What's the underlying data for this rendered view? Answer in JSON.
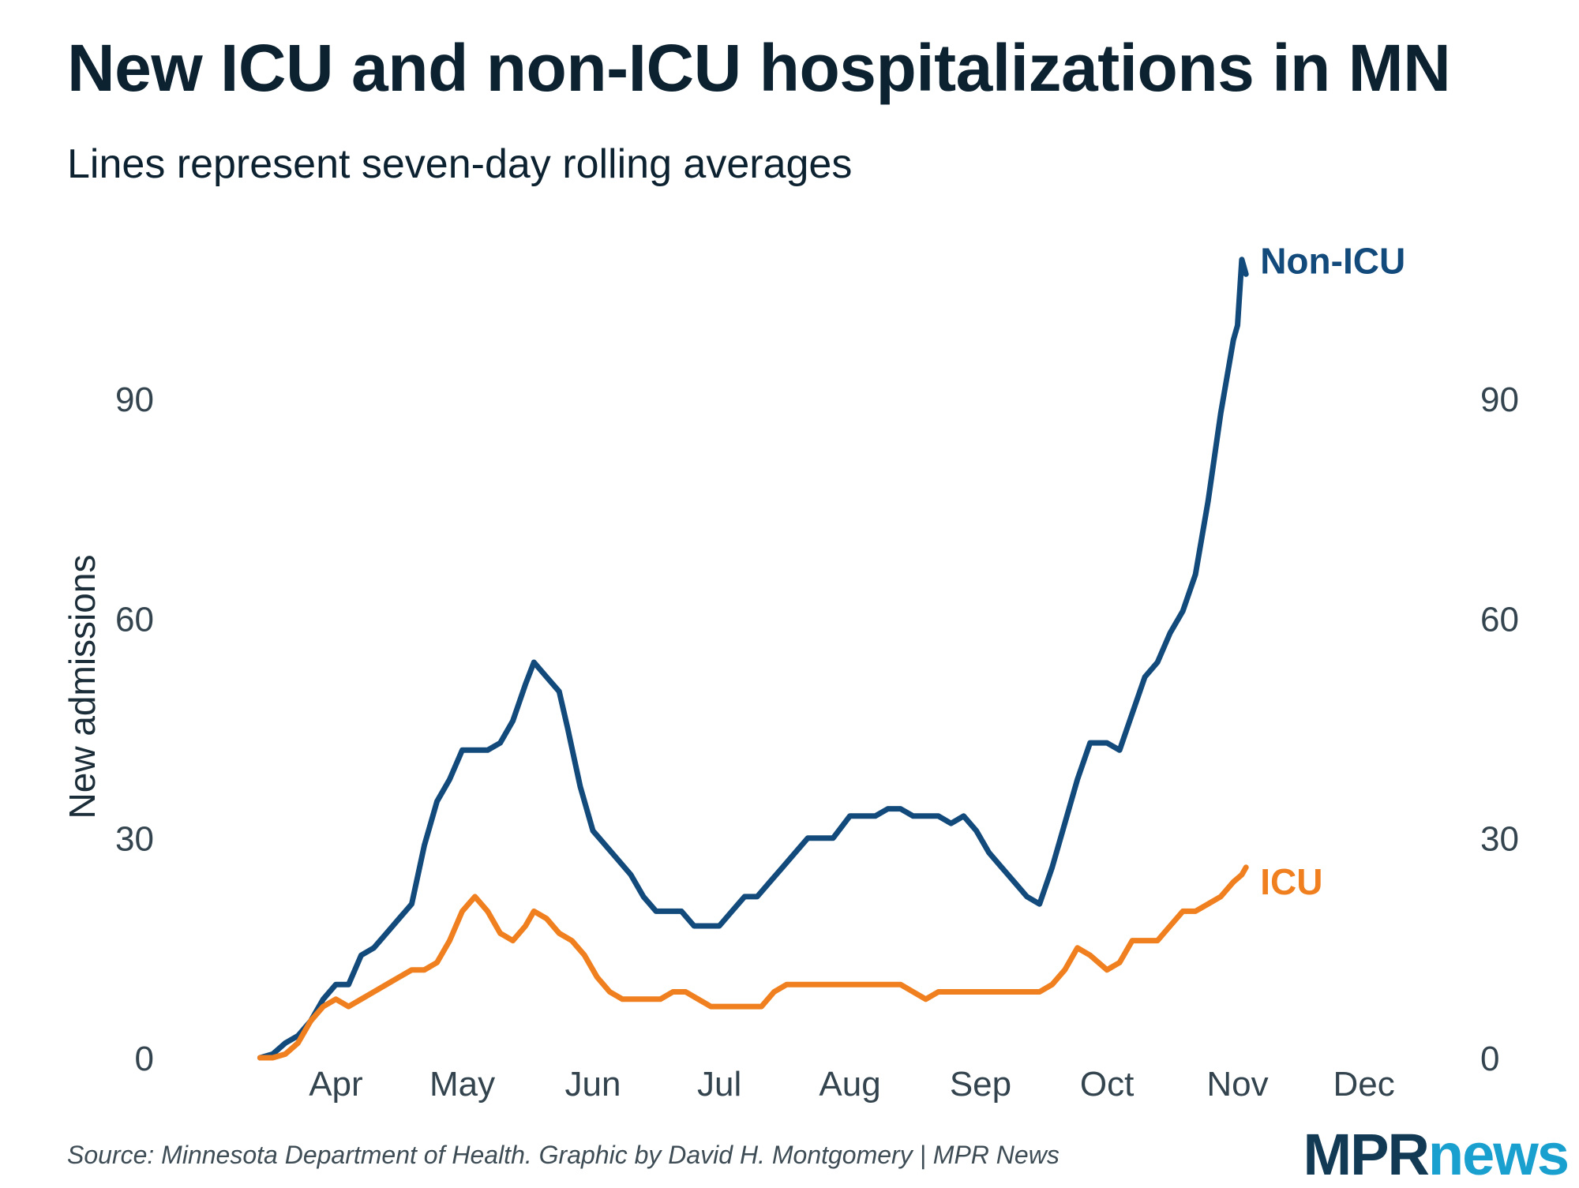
{
  "title": "New ICU and non-ICU hospitalizations in MN",
  "subtitle": "Lines represent seven-day rolling averages",
  "source": "Source: Minnesota Department of Health. Graphic by David H. Montgomery | MPR News",
  "logo": {
    "part1": "MPR",
    "part2": "news"
  },
  "colors": {
    "non_icu": "#134a7c",
    "icu": "#f0801f",
    "text": "#0d2231"
  },
  "chart_data": {
    "type": "line",
    "title": "New ICU and non-ICU hospitalizations in MN",
    "subtitle": "Lines represent seven-day rolling averages",
    "ylabel": "New admissions",
    "xlabel": "",
    "ylim": [
      0,
      120
    ],
    "yticks": [
      0,
      30,
      60,
      90
    ],
    "xlim": [
      "2020-03-01",
      "2020-12-08"
    ],
    "xticks": [
      {
        "label": "Apr",
        "date": "2020-04-01"
      },
      {
        "label": "May",
        "date": "2020-05-01"
      },
      {
        "label": "Jun",
        "date": "2020-06-01"
      },
      {
        "label": "Jul",
        "date": "2020-07-01"
      },
      {
        "label": "Aug",
        "date": "2020-08-01"
      },
      {
        "label": "Sep",
        "date": "2020-09-01"
      },
      {
        "label": "Oct",
        "date": "2020-10-01"
      },
      {
        "label": "Nov",
        "date": "2020-11-01"
      },
      {
        "label": "Dec",
        "date": "2020-12-01"
      }
    ],
    "grid": false,
    "legend": "direct labels at line ends",
    "series": [
      {
        "name": "Non-ICU",
        "color": "#134a7c",
        "points": [
          [
            "2020-03-14",
            0
          ],
          [
            "2020-03-17",
            0.5
          ],
          [
            "2020-03-20",
            2
          ],
          [
            "2020-03-23",
            3
          ],
          [
            "2020-03-26",
            5
          ],
          [
            "2020-03-29",
            8
          ],
          [
            "2020-04-01",
            10
          ],
          [
            "2020-04-04",
            10
          ],
          [
            "2020-04-07",
            14
          ],
          [
            "2020-04-10",
            15
          ],
          [
            "2020-04-13",
            17
          ],
          [
            "2020-04-16",
            19
          ],
          [
            "2020-04-19",
            21
          ],
          [
            "2020-04-22",
            29
          ],
          [
            "2020-04-25",
            35
          ],
          [
            "2020-04-28",
            38
          ],
          [
            "2020-05-01",
            42
          ],
          [
            "2020-05-04",
            42
          ],
          [
            "2020-05-07",
            42
          ],
          [
            "2020-05-10",
            43
          ],
          [
            "2020-05-13",
            46
          ],
          [
            "2020-05-16",
            51
          ],
          [
            "2020-05-18",
            54
          ],
          [
            "2020-05-21",
            52
          ],
          [
            "2020-05-24",
            50
          ],
          [
            "2020-05-26",
            45
          ],
          [
            "2020-05-29",
            37
          ],
          [
            "2020-06-01",
            31
          ],
          [
            "2020-06-04",
            29
          ],
          [
            "2020-06-07",
            27
          ],
          [
            "2020-06-10",
            25
          ],
          [
            "2020-06-13",
            22
          ],
          [
            "2020-06-16",
            20
          ],
          [
            "2020-06-19",
            20
          ],
          [
            "2020-06-22",
            20
          ],
          [
            "2020-06-25",
            18
          ],
          [
            "2020-06-28",
            18
          ],
          [
            "2020-07-01",
            18
          ],
          [
            "2020-07-04",
            20
          ],
          [
            "2020-07-07",
            22
          ],
          [
            "2020-07-10",
            22
          ],
          [
            "2020-07-13",
            24
          ],
          [
            "2020-07-16",
            26
          ],
          [
            "2020-07-19",
            28
          ],
          [
            "2020-07-22",
            30
          ],
          [
            "2020-07-25",
            30
          ],
          [
            "2020-07-28",
            30
          ],
          [
            "2020-08-01",
            33
          ],
          [
            "2020-08-04",
            33
          ],
          [
            "2020-08-07",
            33
          ],
          [
            "2020-08-10",
            34
          ],
          [
            "2020-08-13",
            34
          ],
          [
            "2020-08-16",
            33
          ],
          [
            "2020-08-19",
            33
          ],
          [
            "2020-08-22",
            33
          ],
          [
            "2020-08-25",
            32
          ],
          [
            "2020-08-28",
            33
          ],
          [
            "2020-08-31",
            31
          ],
          [
            "2020-09-03",
            28
          ],
          [
            "2020-09-06",
            26
          ],
          [
            "2020-09-09",
            24
          ],
          [
            "2020-09-12",
            22
          ],
          [
            "2020-09-15",
            21
          ],
          [
            "2020-09-18",
            26
          ],
          [
            "2020-09-21",
            32
          ],
          [
            "2020-09-24",
            38
          ],
          [
            "2020-09-27",
            43
          ],
          [
            "2020-10-01",
            43
          ],
          [
            "2020-10-04",
            42
          ],
          [
            "2020-10-07",
            47
          ],
          [
            "2020-10-10",
            52
          ],
          [
            "2020-10-13",
            54
          ],
          [
            "2020-10-16",
            58
          ],
          [
            "2020-10-19",
            61
          ],
          [
            "2020-10-22",
            66
          ],
          [
            "2020-10-25",
            76
          ],
          [
            "2020-10-28",
            88
          ],
          [
            "2020-10-31",
            98
          ],
          [
            "2020-11-01",
            100
          ],
          [
            "2020-11-02",
            109
          ],
          [
            "2020-11-03",
            107
          ]
        ]
      },
      {
        "name": "ICU",
        "color": "#f0801f",
        "points": [
          [
            "2020-03-14",
            0
          ],
          [
            "2020-03-17",
            0
          ],
          [
            "2020-03-20",
            0.5
          ],
          [
            "2020-03-23",
            2
          ],
          [
            "2020-03-26",
            5
          ],
          [
            "2020-03-29",
            7
          ],
          [
            "2020-04-01",
            8
          ],
          [
            "2020-04-04",
            7
          ],
          [
            "2020-04-07",
            8
          ],
          [
            "2020-04-10",
            9
          ],
          [
            "2020-04-13",
            10
          ],
          [
            "2020-04-16",
            11
          ],
          [
            "2020-04-19",
            12
          ],
          [
            "2020-04-22",
            12
          ],
          [
            "2020-04-25",
            13
          ],
          [
            "2020-04-28",
            16
          ],
          [
            "2020-05-01",
            20
          ],
          [
            "2020-05-04",
            22
          ],
          [
            "2020-05-07",
            20
          ],
          [
            "2020-05-10",
            17
          ],
          [
            "2020-05-13",
            16
          ],
          [
            "2020-05-16",
            18
          ],
          [
            "2020-05-18",
            20
          ],
          [
            "2020-05-21",
            19
          ],
          [
            "2020-05-24",
            17
          ],
          [
            "2020-05-27",
            16
          ],
          [
            "2020-05-30",
            14
          ],
          [
            "2020-06-02",
            11
          ],
          [
            "2020-06-05",
            9
          ],
          [
            "2020-06-08",
            8
          ],
          [
            "2020-06-11",
            8
          ],
          [
            "2020-06-14",
            8
          ],
          [
            "2020-06-17",
            8
          ],
          [
            "2020-06-20",
            9
          ],
          [
            "2020-06-23",
            9
          ],
          [
            "2020-06-26",
            8
          ],
          [
            "2020-06-29",
            7
          ],
          [
            "2020-07-02",
            7
          ],
          [
            "2020-07-05",
            7
          ],
          [
            "2020-07-08",
            7
          ],
          [
            "2020-07-11",
            7
          ],
          [
            "2020-07-14",
            9
          ],
          [
            "2020-07-17",
            10
          ],
          [
            "2020-07-20",
            10
          ],
          [
            "2020-07-23",
            10
          ],
          [
            "2020-07-26",
            10
          ],
          [
            "2020-07-29",
            10
          ],
          [
            "2020-08-01",
            10
          ],
          [
            "2020-08-04",
            10
          ],
          [
            "2020-08-07",
            10
          ],
          [
            "2020-08-10",
            10
          ],
          [
            "2020-08-13",
            10
          ],
          [
            "2020-08-16",
            9
          ],
          [
            "2020-08-19",
            8
          ],
          [
            "2020-08-22",
            9
          ],
          [
            "2020-08-25",
            9
          ],
          [
            "2020-08-28",
            9
          ],
          [
            "2020-08-31",
            9
          ],
          [
            "2020-09-03",
            9
          ],
          [
            "2020-09-06",
            9
          ],
          [
            "2020-09-09",
            9
          ],
          [
            "2020-09-12",
            9
          ],
          [
            "2020-09-15",
            9
          ],
          [
            "2020-09-18",
            10
          ],
          [
            "2020-09-21",
            12
          ],
          [
            "2020-09-24",
            15
          ],
          [
            "2020-09-27",
            14
          ],
          [
            "2020-10-01",
            12
          ],
          [
            "2020-10-04",
            13
          ],
          [
            "2020-10-07",
            16
          ],
          [
            "2020-10-10",
            16
          ],
          [
            "2020-10-13",
            16
          ],
          [
            "2020-10-16",
            18
          ],
          [
            "2020-10-19",
            20
          ],
          [
            "2020-10-22",
            20
          ],
          [
            "2020-10-25",
            21
          ],
          [
            "2020-10-28",
            22
          ],
          [
            "2020-10-31",
            24
          ],
          [
            "2020-11-02",
            25
          ],
          [
            "2020-11-03",
            26
          ]
        ]
      }
    ]
  }
}
